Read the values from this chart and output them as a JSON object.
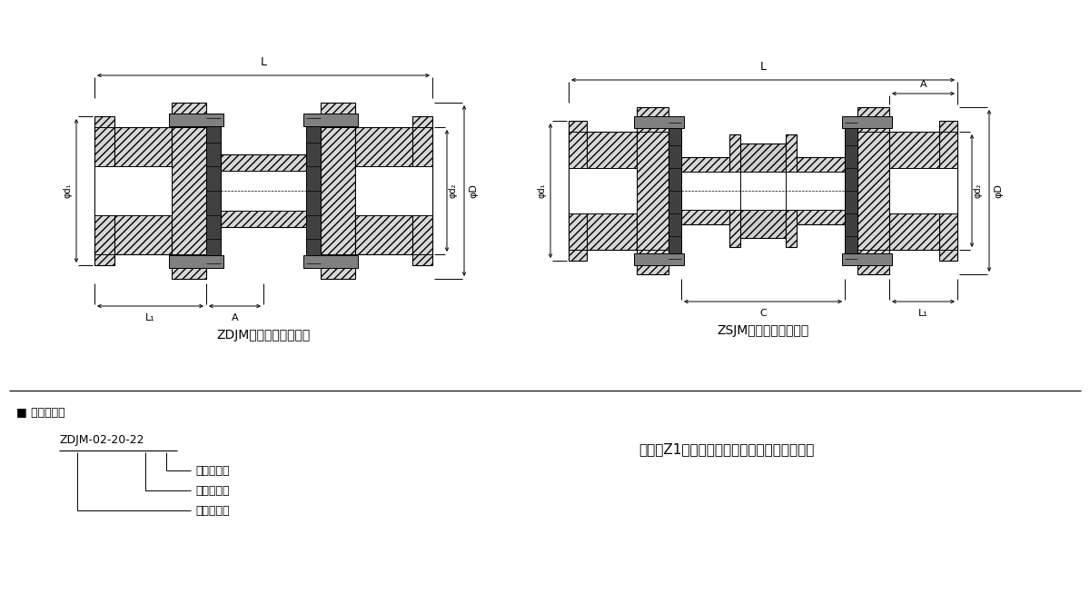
{
  "bg_color": "#ffffff",
  "line_color": "#000000",
  "title1": "ZDJM型弹性膜片联轴器",
  "title2": "ZSJM型弹性膜片联轴器",
  "label_example_title": "■ 标记示例：",
  "label_code": "ZDJM-02-20-22",
  "label_line1": "从动轴轴径",
  "label_line2": "主动轴轴径",
  "label_line3": "型号及规格",
  "right_text": "替代带Z1型胀套的弹性膜片联轴器的最佳选择",
  "fig_width": 12.0,
  "fig_height": 6.54,
  "font_path": "SimHei"
}
